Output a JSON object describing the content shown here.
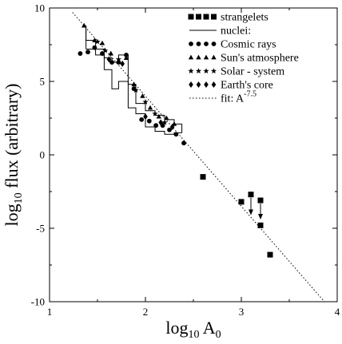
{
  "chart_data": {
    "type": "scatter",
    "xlabel_base": "log",
    "xlabel_sub": "10",
    "xlabel_tail": " A",
    "xlabel_tail_sub": "0",
    "ylabel_base": "log",
    "ylabel_sub": "10",
    "ylabel_tail": " flux (arbitrary)",
    "xlim": [
      1,
      4
    ],
    "ylim": [
      -10,
      10
    ],
    "x_ticks": [
      1,
      2,
      3,
      4
    ],
    "x_tick_labels": [
      "1",
      "2",
      "3",
      "4"
    ],
    "y_ticks": [
      -10,
      -5,
      0,
      5,
      10
    ],
    "y_tick_labels": [
      "-10",
      "-5",
      "0",
      "5",
      "10"
    ],
    "grid": false,
    "legend_position": "top-right",
    "legend": [
      {
        "id": "strangelets",
        "marker": "square",
        "label": "strangelets"
      },
      {
        "id": "nuclei",
        "marker": "line",
        "label": "nuclei:"
      },
      {
        "id": "cosmic",
        "marker": "circle",
        "label": "Cosmic rays"
      },
      {
        "id": "sun",
        "marker": "triangle",
        "label": "Sun's atmosphere"
      },
      {
        "id": "solar",
        "marker": "star",
        "label": "Solar - system"
      },
      {
        "id": "earth",
        "marker": "diamond",
        "label": "Earth's core"
      },
      {
        "id": "fit",
        "marker": "dotted",
        "label": "fit: A",
        "label_sup": "-7.5"
      }
    ],
    "series": [
      {
        "name": "strangelets",
        "marker": "square",
        "points": [
          [
            2.6,
            -1.5
          ],
          [
            3.0,
            -3.2
          ],
          [
            3.1,
            -2.7
          ],
          [
            3.2,
            -3.1
          ],
          [
            3.2,
            -4.8
          ],
          [
            3.3,
            -6.8
          ]
        ],
        "upper_limit_arrows": [
          [
            3.1,
            -2.7,
            -4.1
          ],
          [
            3.2,
            -3.1,
            -4.4
          ]
        ]
      },
      {
        "name": "Cosmic rays",
        "marker": "circle",
        "points": [
          [
            1.32,
            6.9
          ],
          [
            1.4,
            7.0
          ],
          [
            1.47,
            7.3
          ],
          [
            1.55,
            6.9
          ],
          [
            1.65,
            6.3
          ],
          [
            1.72,
            6.3
          ],
          [
            1.8,
            6.8
          ],
          [
            1.88,
            4.5
          ],
          [
            1.96,
            2.4
          ],
          [
            2.04,
            2.3
          ],
          [
            2.11,
            2.0
          ],
          [
            2.18,
            2.0
          ],
          [
            2.25,
            1.7
          ],
          [
            2.32,
            1.4
          ],
          [
            2.4,
            0.8
          ]
        ]
      },
      {
        "name": "Sun's atmosphere",
        "marker": "triangle",
        "points": [
          [
            1.36,
            8.8
          ],
          [
            1.47,
            7.8
          ],
          [
            1.55,
            7.6
          ],
          [
            1.64,
            6.9
          ],
          [
            1.8,
            6.6
          ],
          [
            1.88,
            4.8
          ],
          [
            1.97,
            4.0
          ],
          [
            2.05,
            3.2
          ],
          [
            2.14,
            2.6
          ],
          [
            2.22,
            2.5
          ],
          [
            2.3,
            2.1
          ]
        ]
      },
      {
        "name": "Solar - system",
        "marker": "star",
        "points": [
          [
            1.5,
            7.7
          ],
          [
            1.58,
            7.1
          ],
          [
            1.72,
            6.5
          ],
          [
            1.9,
            4.4
          ],
          [
            2.0,
            3.6
          ],
          [
            2.1,
            2.8
          ],
          [
            2.2,
            2.2
          ]
        ]
      },
      {
        "name": "Earth's core",
        "marker": "diamond",
        "points": [
          [
            1.62,
            6.5
          ],
          [
            1.76,
            6.2
          ],
          [
            2.0,
            2.6
          ],
          [
            2.16,
            2.2
          ],
          [
            2.28,
            1.9
          ]
        ]
      }
    ],
    "nuclei_histogram": {
      "upper": [
        [
          1.38,
          8.8
        ],
        [
          1.38,
          7.8
        ],
        [
          1.48,
          7.8
        ],
        [
          1.48,
          7.2
        ],
        [
          1.57,
          7.2
        ],
        [
          1.57,
          6.6
        ],
        [
          1.65,
          6.6
        ],
        [
          1.65,
          6.3
        ],
        [
          1.72,
          6.3
        ],
        [
          1.72,
          6.8
        ],
        [
          1.82,
          6.8
        ],
        [
          1.82,
          4.8
        ],
        [
          1.9,
          4.8
        ],
        [
          1.9,
          3.5
        ],
        [
          2.0,
          3.5
        ],
        [
          2.0,
          3.0
        ],
        [
          2.1,
          3.0
        ],
        [
          2.1,
          2.7
        ],
        [
          2.2,
          2.7
        ],
        [
          2.2,
          2.4
        ],
        [
          2.3,
          2.4
        ],
        [
          2.3,
          2.1
        ],
        [
          2.38,
          2.1
        ]
      ],
      "lower": [
        [
          1.38,
          7.2
        ],
        [
          1.48,
          7.2
        ],
        [
          1.48,
          6.8
        ],
        [
          1.57,
          6.8
        ],
        [
          1.57,
          5.8
        ],
        [
          1.65,
          5.8
        ],
        [
          1.65,
          4.5
        ],
        [
          1.72,
          4.5
        ],
        [
          1.72,
          5.0
        ],
        [
          1.82,
          5.0
        ],
        [
          1.82,
          3.2
        ],
        [
          1.9,
          3.2
        ],
        [
          1.9,
          2.8
        ],
        [
          2.0,
          2.8
        ],
        [
          2.0,
          1.9
        ],
        [
          2.1,
          1.9
        ],
        [
          2.1,
          1.6
        ],
        [
          2.2,
          1.6
        ],
        [
          2.2,
          1.4
        ],
        [
          2.3,
          1.4
        ],
        [
          2.3,
          1.5
        ],
        [
          2.38,
          1.5
        ]
      ],
      "dividers": [
        1.48,
        1.57,
        1.65,
        1.72,
        1.82,
        1.9,
        2.0,
        2.1,
        2.2,
        2.3
      ]
    },
    "fit": {
      "label": "fit: A",
      "label_sup": "-7.5",
      "slope": -7.5,
      "intercept": 19.0,
      "x_range": [
        1.24,
        3.87
      ]
    }
  }
}
